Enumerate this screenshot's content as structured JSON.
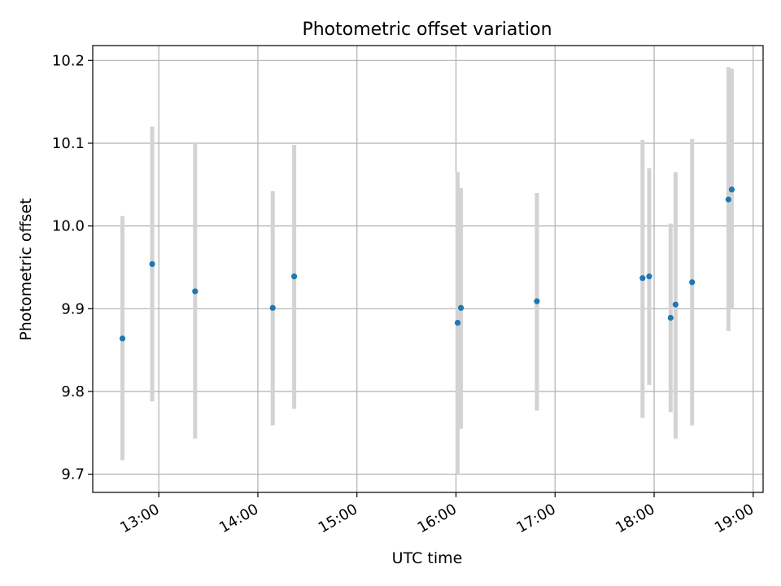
{
  "chart_data": {
    "type": "scatter",
    "title": "Photometric offset variation",
    "xlabel": "UTC time",
    "ylabel": "Photometric offset",
    "x_ticks": [
      "13:00",
      "14:00",
      "15:00",
      "16:00",
      "17:00",
      "18:00",
      "19:00"
    ],
    "y_ticks": [
      "9.7",
      "9.8",
      "9.9",
      "10.0",
      "10.1",
      "10.2"
    ],
    "xlim": [
      "12:20",
      "19:06"
    ],
    "ylim": [
      9.678,
      10.218
    ],
    "grid": true,
    "errorbar_color": "#d3d3d3",
    "marker_color": "#1f77b4",
    "points": [
      {
        "x": "12:38",
        "y": 9.864,
        "ylow": 9.717,
        "yhigh": 10.012
      },
      {
        "x": "12:56",
        "y": 9.954,
        "ylow": 9.788,
        "yhigh": 10.12
      },
      {
        "x": "13:22",
        "y": 9.921,
        "ylow": 9.743,
        "yhigh": 10.1
      },
      {
        "x": "14:09",
        "y": 9.901,
        "ylow": 9.759,
        "yhigh": 10.042
      },
      {
        "x": "14:22",
        "y": 9.939,
        "ylow": 9.779,
        "yhigh": 10.098
      },
      {
        "x": "16:01",
        "y": 9.883,
        "ylow": 9.7,
        "yhigh": 10.065
      },
      {
        "x": "16:03",
        "y": 9.901,
        "ylow": 9.755,
        "yhigh": 10.046
      },
      {
        "x": "16:49",
        "y": 9.909,
        "ylow": 9.777,
        "yhigh": 10.04
      },
      {
        "x": "17:53",
        "y": 9.937,
        "ylow": 9.768,
        "yhigh": 10.104
      },
      {
        "x": "17:57",
        "y": 9.939,
        "ylow": 9.808,
        "yhigh": 10.07
      },
      {
        "x": "18:10",
        "y": 9.889,
        "ylow": 9.775,
        "yhigh": 10.003
      },
      {
        "x": "18:13",
        "y": 9.905,
        "ylow": 9.743,
        "yhigh": 10.065
      },
      {
        "x": "18:23",
        "y": 9.932,
        "ylow": 9.759,
        "yhigh": 10.105
      },
      {
        "x": "18:45",
        "y": 10.032,
        "ylow": 9.873,
        "yhigh": 10.192
      },
      {
        "x": "18:47",
        "y": 10.044,
        "ylow": 9.9,
        "yhigh": 10.19
      }
    ]
  }
}
